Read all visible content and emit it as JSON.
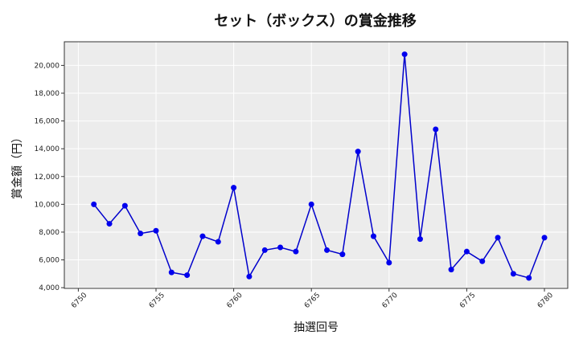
{
  "chart_data": {
    "type": "line",
    "title": "セット（ボックス）の賞金推移",
    "xlabel": "抽選回号",
    "ylabel": "賞金額（円）",
    "x_ticks": [
      6750,
      6755,
      6760,
      6765,
      6770,
      6775,
      6780
    ],
    "y_ticks": [
      4000,
      6000,
      8000,
      10000,
      12000,
      14000,
      16000,
      18000,
      20000
    ],
    "y_tick_labels": [
      "4,000",
      "6,000",
      "8,000",
      "10,000",
      "12,000",
      "14,000",
      "16,000",
      "18,000",
      "20,000"
    ],
    "xlim": [
      6749.1,
      6781.5
    ],
    "ylim": [
      3950,
      21700
    ],
    "grid": true,
    "line_color": "#0000cc",
    "marker_color": "#0000ee",
    "background_color": "#ececec",
    "x": [
      6751,
      6752,
      6753,
      6754,
      6755,
      6756,
      6757,
      6758,
      6759,
      6760,
      6761,
      6762,
      6763,
      6764,
      6765,
      6766,
      6767,
      6768,
      6769,
      6770,
      6771,
      6772,
      6773,
      6774,
      6775,
      6776,
      6777,
      6778,
      6779,
      6780
    ],
    "series": [
      {
        "values": [
          10000,
          8600,
          9900,
          7900,
          8100,
          5100,
          4900,
          7700,
          7300,
          11200,
          4800,
          6700,
          6900,
          6600,
          10000,
          6700,
          6400,
          13800,
          7700,
          5800,
          20800,
          7500,
          15400,
          5300,
          6600,
          5900,
          7600,
          5000,
          4700,
          7600
        ]
      }
    ]
  }
}
